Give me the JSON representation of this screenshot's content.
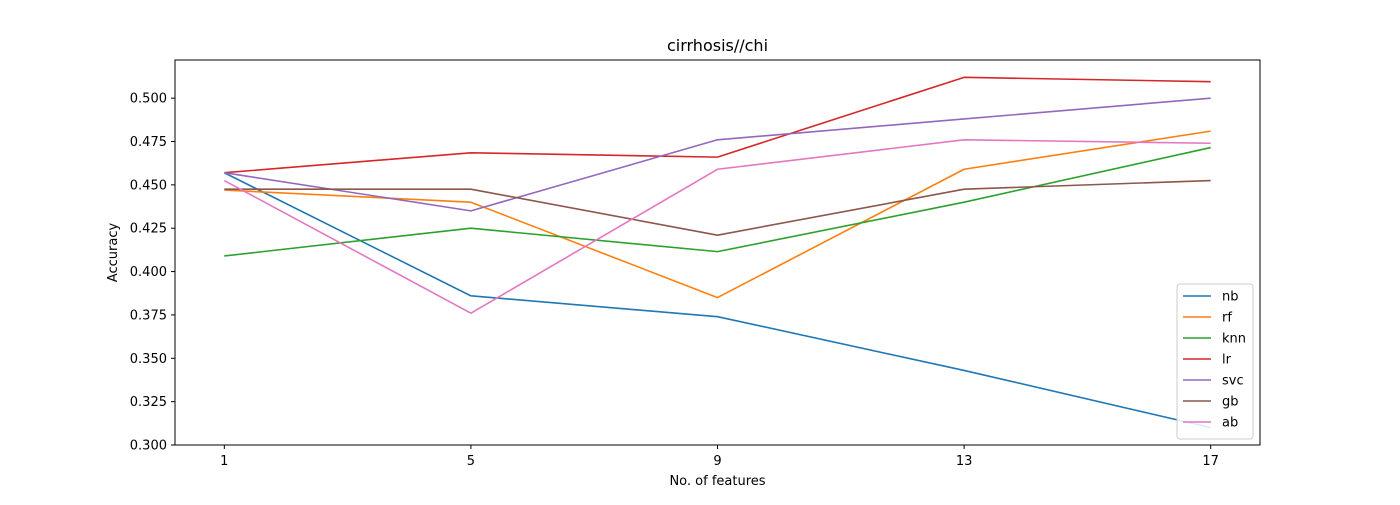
{
  "chart_data": {
    "type": "line",
    "title": "cirrhosis//chi",
    "xlabel": "No. of features",
    "ylabel": "Accuracy",
    "x": [
      1,
      5,
      9,
      13,
      17
    ],
    "x_tick_labels": [
      "1",
      "5",
      "9",
      "13",
      "17"
    ],
    "ylim": [
      0.3,
      0.522
    ],
    "y_ticks": [
      0.3,
      0.325,
      0.35,
      0.375,
      0.4,
      0.425,
      0.45,
      0.475,
      0.5
    ],
    "y_tick_labels": [
      "0.300",
      "0.325",
      "0.350",
      "0.375",
      "0.400",
      "0.425",
      "0.450",
      "0.475",
      "0.500"
    ],
    "grid": false,
    "legend_position": "lower-right",
    "series": [
      {
        "name": "nb",
        "color": "#1f77b4",
        "values": [
          0.457,
          0.386,
          0.374,
          0.343,
          0.31
        ]
      },
      {
        "name": "rf",
        "color": "#ff7f0e",
        "values": [
          0.447,
          0.44,
          0.385,
          0.459,
          0.481
        ]
      },
      {
        "name": "knn",
        "color": "#2ca02c",
        "values": [
          0.409,
          0.425,
          0.4115,
          0.44,
          0.4715
        ]
      },
      {
        "name": "lr",
        "color": "#d62728",
        "values": [
          0.457,
          0.4685,
          0.466,
          0.512,
          0.5095
        ]
      },
      {
        "name": "svc",
        "color": "#9467bd",
        "values": [
          0.457,
          0.435,
          0.476,
          0.488,
          0.5
        ]
      },
      {
        "name": "gb",
        "color": "#8c564b",
        "values": [
          0.4475,
          0.4475,
          0.421,
          0.4475,
          0.4525
        ]
      },
      {
        "name": "ab",
        "color": "#e377c2",
        "values": [
          0.4525,
          0.376,
          0.459,
          0.476,
          0.474
        ]
      }
    ]
  }
}
